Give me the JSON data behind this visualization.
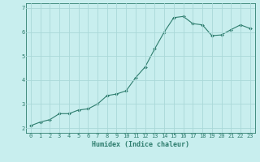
{
  "title": "",
  "xlabel": "Humidex (Indice chaleur)",
  "ylabel": "",
  "x_values": [
    0,
    1,
    2,
    3,
    4,
    5,
    6,
    7,
    8,
    9,
    10,
    11,
    12,
    13,
    14,
    15,
    16,
    17,
    18,
    19,
    20,
    21,
    22,
    23
  ],
  "y_values": [
    2.1,
    2.25,
    2.35,
    2.6,
    2.6,
    2.75,
    2.8,
    3.0,
    3.35,
    3.42,
    3.55,
    4.1,
    4.55,
    5.3,
    6.0,
    6.6,
    6.65,
    6.35,
    6.3,
    5.85,
    5.88,
    6.1,
    6.3,
    6.15
  ],
  "line_color": "#2e7d6e",
  "marker": "D",
  "marker_size": 2.0,
  "bg_color": "#c8eeee",
  "grid_color": "#aad8d8",
  "tick_color": "#2e7d6e",
  "label_color": "#2e7d6e",
  "ylim": [
    1.8,
    7.2
  ],
  "xlim": [
    -0.5,
    23.5
  ],
  "yticks": [
    2,
    3,
    4,
    5,
    6,
    7
  ],
  "xticks": [
    0,
    1,
    2,
    3,
    4,
    5,
    6,
    7,
    8,
    9,
    10,
    11,
    12,
    13,
    14,
    15,
    16,
    17,
    18,
    19,
    20,
    21,
    22,
    23
  ],
  "linewidth": 0.8,
  "xlabel_fontsize": 6.0,
  "tick_fontsize": 5.0,
  "xlabel_fontweight": "bold"
}
